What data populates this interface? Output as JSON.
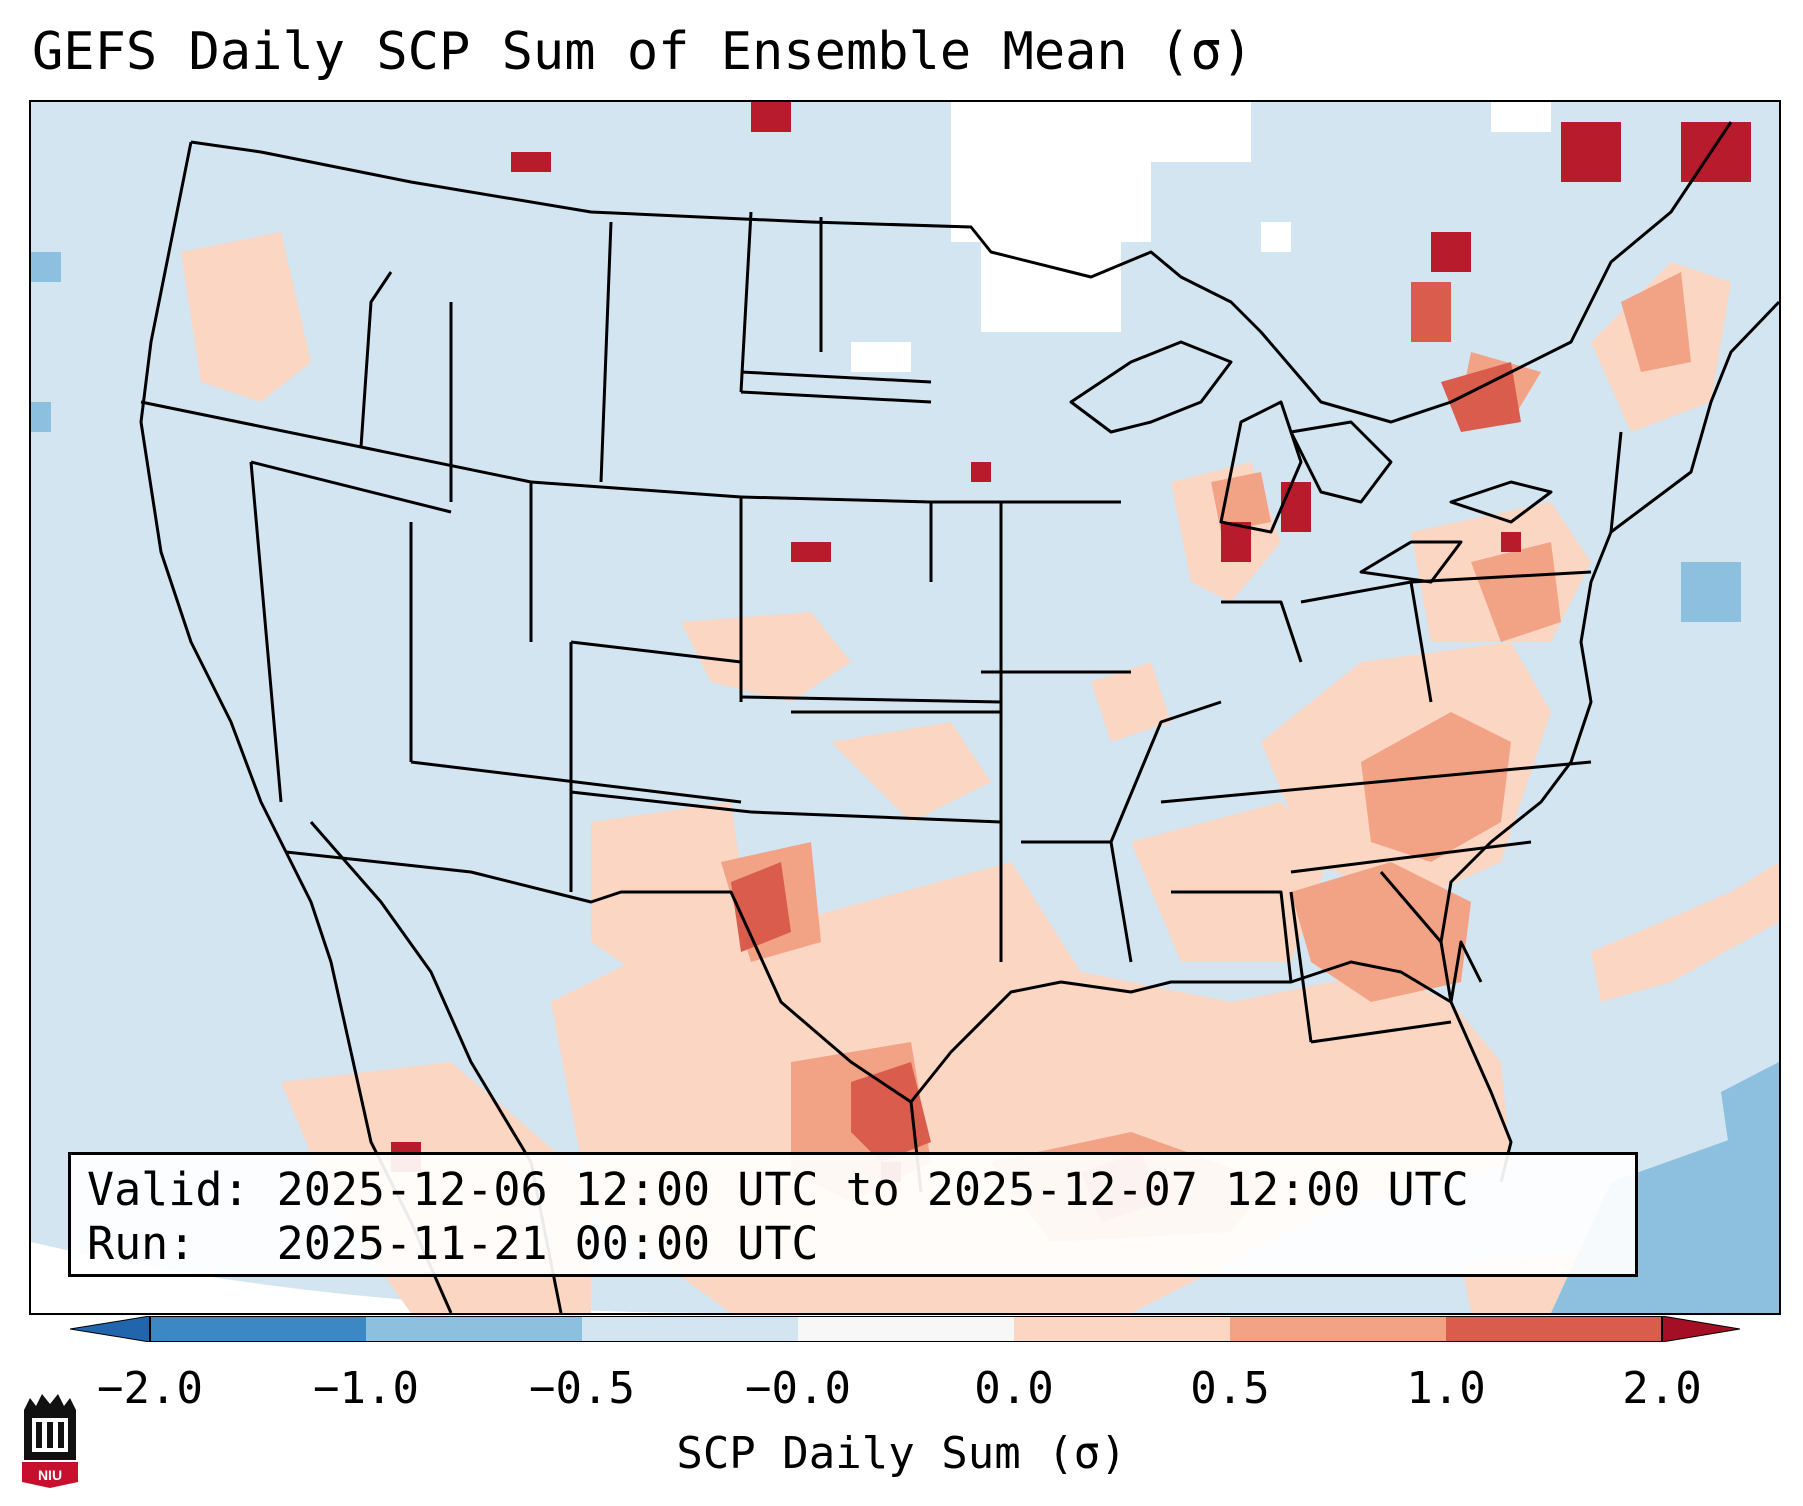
{
  "title": "GEFS Daily SCP Sum of Ensemble Mean (σ)",
  "info": {
    "valid_label": "Valid:",
    "valid_value": "2025-12-06 12:00 UTC to 2025-12-07 12:00 UTC",
    "run_label": "Run:",
    "run_value": "2025-11-21 00:00 UTC"
  },
  "colorbar": {
    "label": "SCP Daily Sum (σ)",
    "ticks": [
      "−2.0",
      "−1.0",
      "−0.5",
      "−0.0",
      "0.0",
      "0.5",
      "1.0",
      "2.0"
    ],
    "colors": [
      "#3b88c4",
      "#8cc0de",
      "#d2e5f1",
      "#f7f7f7",
      "#fbd6c3",
      "#f2a285",
      "#d95c4d",
      "#b81b2c"
    ],
    "extend": "both"
  },
  "map": {
    "ocean_color": "#d2e5f1",
    "white_area_color": "#ffffff",
    "border_color": "#000000"
  },
  "logo": {
    "text": "NIU",
    "colors": {
      "tower": "#111111",
      "badge": "#c8102e"
    }
  }
}
